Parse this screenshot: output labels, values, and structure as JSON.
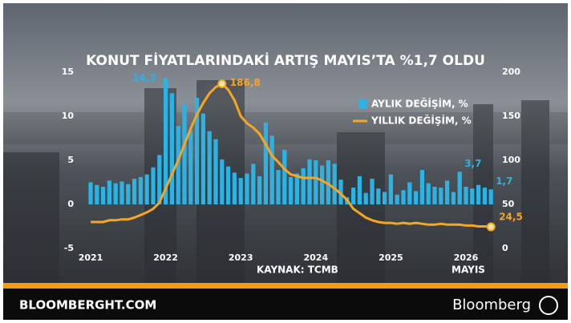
{
  "chart_data": {
    "type": "bar-line",
    "title": "KONUT FİYATLARINDAKİ ARTIŞ MAYIS’TA %1,7 OLDU",
    "source": "KAYNAK: TCMB",
    "x_note": "MAYIS",
    "categories": [
      "2021",
      null,
      null,
      null,
      null,
      null,
      null,
      null,
      null,
      null,
      null,
      null,
      "2022",
      null,
      null,
      null,
      null,
      null,
      null,
      null,
      null,
      null,
      null,
      null,
      "2023",
      null,
      null,
      null,
      null,
      null,
      null,
      null,
      null,
      null,
      null,
      null,
      "2024",
      null,
      null,
      null,
      null,
      null,
      null,
      null,
      null,
      null,
      null,
      null,
      "2025",
      null,
      null,
      null,
      null,
      null,
      null,
      null,
      null,
      null,
      null,
      null,
      "2026",
      null,
      null,
      null,
      null
    ],
    "series": [
      {
        "name": "AYLIK DEĞİŞİM, %",
        "kind": "bar",
        "axis": "y",
        "color": "#2bb3e6",
        "values": [
          2.5,
          2.2,
          2.0,
          2.7,
          2.4,
          2.6,
          2.3,
          2.9,
          3.1,
          3.4,
          4.2,
          5.6,
          14.3,
          12.6,
          8.9,
          11.4,
          8.4,
          12.1,
          10.3,
          8.3,
          7.4,
          5.1,
          4.3,
          3.6,
          3.0,
          3.5,
          4.6,
          3.2,
          9.3,
          7.8,
          3.9,
          6.2,
          3.1,
          3.5,
          4.1,
          5.1,
          5.0,
          4.4,
          5.0,
          4.6,
          2.8,
          0.8,
          1.9,
          3.2,
          1.3,
          2.9,
          1.8,
          1.4,
          3.4,
          1.1,
          1.6,
          2.5,
          1.5,
          3.9,
          2.4,
          2.0,
          1.9,
          2.7,
          1.4,
          3.7,
          2.0,
          1.8,
          2.2,
          1.9,
          1.7
        ],
        "value_labels": [
          null,
          null,
          null,
          null,
          null,
          null,
          null,
          null,
          null,
          null,
          null,
          null,
          "14,3",
          null,
          null,
          null,
          null,
          null,
          null,
          null,
          null,
          null,
          null,
          null,
          null,
          null,
          null,
          null,
          null,
          null,
          null,
          null,
          null,
          null,
          null,
          null,
          null,
          null,
          null,
          null,
          null,
          null,
          null,
          null,
          null,
          null,
          null,
          null,
          null,
          null,
          null,
          null,
          null,
          null,
          null,
          null,
          null,
          null,
          null,
          "3,7",
          null,
          null,
          null,
          null,
          "1,7"
        ]
      },
      {
        "name": "YILLIK DEĞİŞİM, %",
        "kind": "line",
        "axis": "y2",
        "color": "#f5a623",
        "values": [
          30,
          30,
          30,
          32,
          32,
          33,
          33,
          35,
          38,
          41,
          45,
          52,
          68,
          84,
          100,
          118,
          136,
          152,
          165,
          176,
          183,
          186.8,
          180,
          168,
          150,
          142,
          137,
          130,
          118,
          105,
          98,
          90,
          84,
          82,
          80,
          80,
          80,
          77,
          73,
          68,
          62,
          55,
          45,
          40,
          35,
          32,
          30,
          29,
          29,
          28,
          29,
          28,
          29,
          28,
          27,
          27,
          28,
          27,
          27,
          27,
          26,
          26,
          25,
          25,
          24.5
        ],
        "value_labels": [
          null,
          null,
          null,
          null,
          null,
          null,
          null,
          null,
          null,
          null,
          null,
          null,
          null,
          null,
          null,
          null,
          null,
          null,
          null,
          null,
          null,
          "186,8",
          null,
          null,
          null,
          null,
          null,
          null,
          null,
          null,
          null,
          null,
          null,
          null,
          null,
          null,
          null,
          null,
          null,
          null,
          null,
          null,
          null,
          null,
          null,
          null,
          null,
          null,
          null,
          null,
          null,
          null,
          null,
          null,
          null,
          null,
          null,
          null,
          null,
          null,
          null,
          null,
          null,
          null,
          "24,5"
        ]
      }
    ],
    "ylim": [
      -5,
      15
    ],
    "yticks": [
      -5,
      0,
      5,
      10,
      15
    ],
    "y2lim": [
      0,
      200
    ],
    "y2ticks": [
      0,
      50,
      100,
      150,
      200
    ],
    "grid": false
  },
  "footer": {
    "site": "BLOOMBERGHT.COM",
    "brand": "Bloomberg"
  }
}
